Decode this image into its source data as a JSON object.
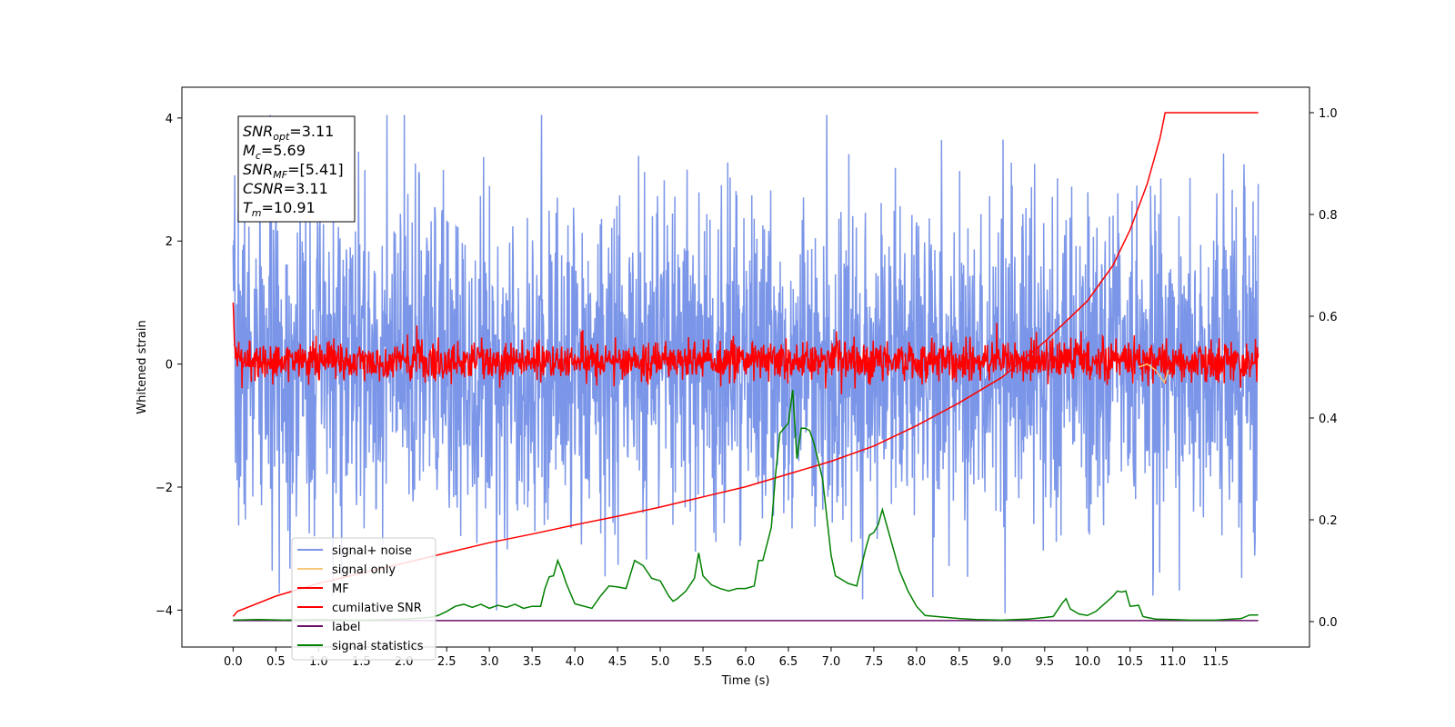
{
  "chart_data": {
    "type": "line",
    "title": "",
    "xlabel": "Time (s)",
    "ylabel": "Whitened strain",
    "xlim": [
      -0.6,
      12.6
    ],
    "ylim": [
      -4.6,
      4.5
    ],
    "y2lim": [
      -0.05,
      1.05
    ],
    "x_ticks": [
      0.0,
      0.5,
      1.0,
      1.5,
      2.0,
      2.5,
      3.0,
      3.5,
      4.0,
      4.5,
      5.0,
      5.5,
      6.0,
      6.5,
      7.0,
      7.5,
      8.0,
      8.5,
      9.0,
      9.5,
      10.0,
      10.5,
      11.0,
      11.5
    ],
    "x_tick_labels": [
      "0.0",
      "0.5",
      "1.0",
      "1.5",
      "2.0",
      "2.5",
      "3.0",
      "3.5",
      "4.0",
      "4.5",
      "5.0",
      "5.5",
      "6.0",
      "6.5",
      "7.0",
      "7.5",
      "8.0",
      "8.5",
      "9.0",
      "9.5",
      "10.0",
      "10.5",
      "11.0",
      "11.5"
    ],
    "y_ticks": [
      -4,
      -2,
      0,
      2,
      4
    ],
    "y_tick_labels": [
      "−4",
      "−2",
      "0",
      "2",
      "4"
    ],
    "y2_ticks": [
      0.0,
      0.2,
      0.4,
      0.6,
      0.8,
      1.0
    ],
    "y2_tick_labels": [
      "0.0",
      "0.2",
      "0.4",
      "0.6",
      "0.8",
      "1.0"
    ],
    "grid": false,
    "legend_position": "bottom-left",
    "legend": [
      {
        "label": "signal+ noise",
        "color": "#7b96e8"
      },
      {
        "label": "signal only",
        "color": "#f6c97a"
      },
      {
        "label": "MF",
        "color": "#ff0000"
      },
      {
        "label": "cumilative SNR",
        "color": "#ff0000"
      },
      {
        "label": "label",
        "color": "#6a0f6a"
      },
      {
        "label": "signal statistics",
        "color": "#008000"
      }
    ],
    "annotation": {
      "lines": [
        {
          "base": "SNR",
          "sub": "opt",
          "value": "=3.11"
        },
        {
          "base": "M",
          "sub": "c",
          "value": "=5.69"
        },
        {
          "base": "SNR",
          "sub": "MF",
          "value": "=[5.41]"
        },
        {
          "base": "CSNR",
          "sub": "",
          "value": "=3.11"
        },
        {
          "base": "T",
          "sub": "m",
          "value": "=10.91"
        }
      ]
    },
    "series": [
      {
        "name": "signal+ noise",
        "axis": "left",
        "color": "#7b96e8",
        "x_range": [
          0.0,
          12.0
        ],
        "band_low": -1.8,
        "band_high": 1.8,
        "max_abs_peak": 4.05
      },
      {
        "name": "MF",
        "axis": "left",
        "color": "#ff0000",
        "x_range": [
          0.0,
          12.0
        ],
        "band_low": -0.25,
        "band_high": 0.35,
        "start_value": 1.0
      },
      {
        "name": "signal only",
        "axis": "left",
        "color": "#f6c97a",
        "x": [
          10.6,
          10.7,
          10.8,
          10.9,
          10.95
        ],
        "y": [
          -0.05,
          0.0,
          -0.1,
          -0.3,
          -0.1
        ]
      },
      {
        "name": "cumilative SNR",
        "axis": "right",
        "color": "#ff0000",
        "x": [
          0.0,
          0.05,
          0.5,
          1.0,
          1.5,
          2.0,
          2.5,
          3.0,
          3.5,
          4.0,
          4.5,
          5.0,
          5.5,
          6.0,
          6.5,
          7.0,
          7.5,
          8.0,
          8.5,
          9.0,
          9.5,
          10.0,
          10.3,
          10.5,
          10.7,
          10.85,
          10.91,
          11.5,
          12.0
        ],
        "y": [
          0.01,
          0.02,
          0.05,
          0.075,
          0.095,
          0.115,
          0.135,
          0.155,
          0.172,
          0.19,
          0.207,
          0.225,
          0.245,
          0.265,
          0.29,
          0.315,
          0.345,
          0.385,
          0.43,
          0.48,
          0.55,
          0.63,
          0.7,
          0.77,
          0.86,
          0.95,
          1.0,
          1.0,
          1.0
        ]
      },
      {
        "name": "label",
        "axis": "right",
        "color": "#6a0f6a",
        "x": [
          0.0,
          12.0
        ],
        "y": [
          0.002,
          0.002
        ]
      },
      {
        "name": "signal statistics",
        "axis": "right",
        "color": "#008000",
        "x": [
          0.0,
          0.3,
          0.6,
          1.0,
          1.5,
          2.0,
          2.3,
          2.4,
          2.5,
          2.6,
          2.7,
          2.8,
          2.9,
          3.0,
          3.1,
          3.2,
          3.3,
          3.4,
          3.5,
          3.6,
          3.65,
          3.7,
          3.75,
          3.8,
          3.85,
          3.9,
          4.0,
          4.2,
          4.3,
          4.4,
          4.5,
          4.6,
          4.7,
          4.8,
          4.9,
          5.0,
          5.1,
          5.15,
          5.2,
          5.3,
          5.4,
          5.45,
          5.5,
          5.6,
          5.7,
          5.8,
          5.9,
          6.0,
          6.1,
          6.15,
          6.2,
          6.3,
          6.35,
          6.4,
          6.5,
          6.55,
          6.6,
          6.65,
          6.7,
          6.75,
          6.8,
          6.9,
          7.0,
          7.05,
          7.1,
          7.2,
          7.3,
          7.4,
          7.45,
          7.5,
          7.55,
          7.6,
          7.7,
          7.8,
          7.9,
          8.0,
          8.1,
          8.3,
          8.5,
          8.7,
          9.0,
          9.3,
          9.5,
          9.6,
          9.7,
          9.75,
          9.8,
          9.9,
          10.0,
          10.1,
          10.2,
          10.3,
          10.35,
          10.4,
          10.45,
          10.5,
          10.6,
          10.65,
          10.7,
          10.8,
          11.0,
          11.2,
          11.5,
          11.8,
          11.9,
          12.0
        ],
        "y": [
          0.003,
          0.004,
          0.003,
          0.004,
          0.003,
          0.005,
          0.008,
          0.012,
          0.02,
          0.03,
          0.034,
          0.028,
          0.034,
          0.026,
          0.032,
          0.028,
          0.034,
          0.026,
          0.03,
          0.03,
          0.065,
          0.088,
          0.09,
          0.12,
          0.1,
          0.075,
          0.035,
          0.026,
          0.05,
          0.07,
          0.068,
          0.065,
          0.12,
          0.11,
          0.085,
          0.08,
          0.05,
          0.04,
          0.045,
          0.06,
          0.085,
          0.135,
          0.09,
          0.072,
          0.065,
          0.06,
          0.065,
          0.065,
          0.07,
          0.12,
          0.12,
          0.185,
          0.29,
          0.37,
          0.39,
          0.455,
          0.32,
          0.38,
          0.38,
          0.375,
          0.35,
          0.28,
          0.13,
          0.09,
          0.085,
          0.075,
          0.07,
          0.14,
          0.17,
          0.175,
          0.19,
          0.22,
          0.16,
          0.1,
          0.06,
          0.03,
          0.012,
          0.009,
          0.006,
          0.004,
          0.003,
          0.005,
          0.008,
          0.01,
          0.035,
          0.045,
          0.025,
          0.015,
          0.012,
          0.02,
          0.035,
          0.05,
          0.06,
          0.058,
          0.06,
          0.03,
          0.032,
          0.01,
          0.008,
          0.005,
          0.004,
          0.003,
          0.003,
          0.006,
          0.013,
          0.013
        ]
      }
    ]
  }
}
